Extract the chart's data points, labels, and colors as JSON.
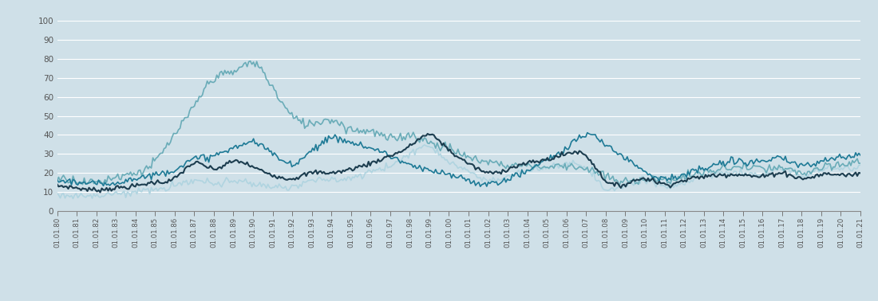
{
  "background_color": "#cfe0e8",
  "plot_bg_color": "#cfe0e8",
  "years": [
    "01.01.80",
    "01.01.81",
    "01.01.82",
    "01.01.83",
    "01.01.84",
    "01.01.85",
    "01.01.86",
    "01.01.87",
    "01.01.88",
    "01.01.89",
    "01.01.90",
    "01.01.91",
    "01.01.92",
    "01.01.93",
    "01.01.94",
    "01.01.95",
    "01.01.96",
    "01.01.97",
    "01.01.98",
    "01.01.99",
    "01.01.00",
    "01.01.01",
    "01.01.02",
    "01.01.03",
    "01.01.04",
    "01.01.05",
    "01.01.06",
    "01.01.07",
    "01.01.08",
    "01.01.09",
    "01.01.10",
    "01.01.11",
    "01.01.12",
    "01.01.13",
    "01.01.14",
    "01.01.15",
    "01.01.16",
    "01.01.17",
    "01.01.18",
    "01.01.19",
    "01.01.20",
    "01.01.21"
  ],
  "msci_europ": [
    13,
    12,
    11,
    12,
    13,
    15,
    17,
    25,
    22,
    26,
    23,
    19,
    17,
    20,
    20,
    22,
    25,
    29,
    34,
    40,
    32,
    25,
    20,
    22,
    25,
    27,
    30,
    29,
    16,
    14,
    17,
    14,
    16,
    18,
    19,
    19,
    18,
    20,
    17,
    19,
    19,
    20
  ],
  "msci_japan": [
    17,
    16,
    15,
    18,
    20,
    26,
    40,
    55,
    70,
    73,
    78,
    65,
    50,
    46,
    48,
    43,
    42,
    38,
    40,
    36,
    33,
    28,
    26,
    24,
    24,
    23,
    24,
    22,
    18,
    15,
    17,
    16,
    18,
    20,
    22,
    23,
    22,
    22,
    20,
    22,
    24,
    26
  ],
  "msci_asia": [
    16,
    15,
    14,
    15,
    17,
    19,
    22,
    27,
    29,
    33,
    36,
    30,
    25,
    32,
    38,
    36,
    33,
    29,
    24,
    21,
    19,
    16,
    14,
    17,
    21,
    27,
    33,
    40,
    35,
    28,
    21,
    17,
    19,
    22,
    25,
    26,
    26,
    27,
    24,
    26,
    28,
    30
  ],
  "sp500": [
    9,
    8,
    8,
    9,
    10,
    11,
    13,
    16,
    14,
    16,
    14,
    13,
    13,
    16,
    16,
    17,
    21,
    24,
    30,
    34,
    26,
    21,
    16,
    18,
    21,
    23,
    25,
    22,
    12,
    13,
    16,
    13,
    15,
    19,
    20,
    20,
    19,
    22,
    19,
    22,
    22,
    25
  ],
  "colors": {
    "msci_europ": "#1c3d4f",
    "msci_japan": "#6aacb8",
    "msci_asia": "#1e7a96",
    "sp500": "#b0d4e0"
  },
  "ylim": [
    0,
    100
  ],
  "yticks": [
    0,
    10,
    20,
    30,
    40,
    50,
    60,
    70,
    80,
    90,
    100
  ]
}
